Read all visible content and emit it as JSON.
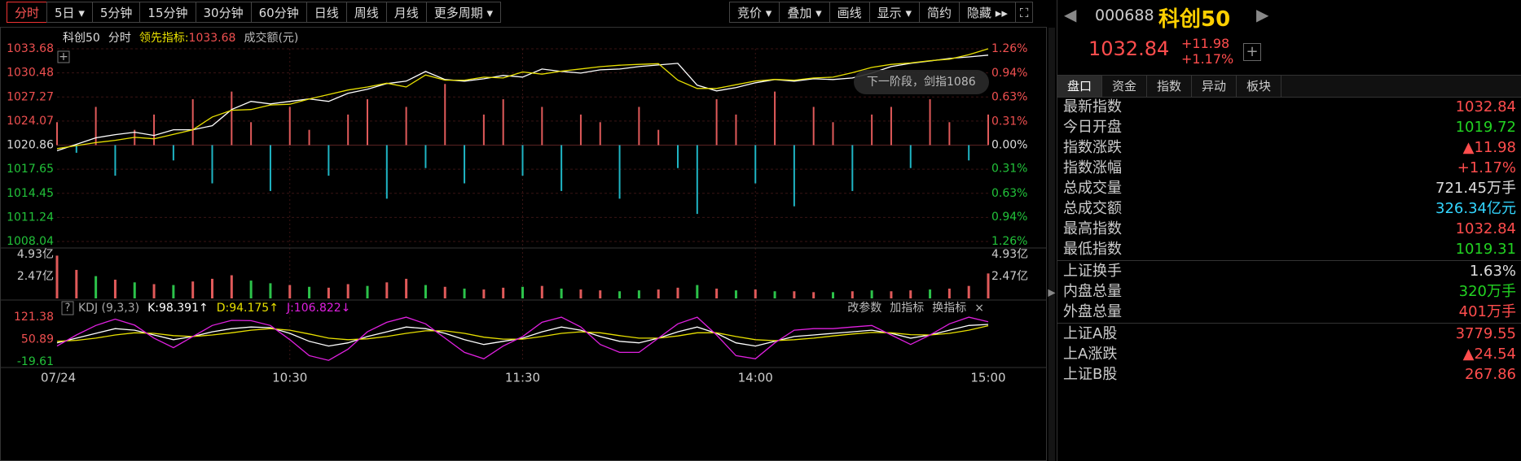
{
  "toolbar": {
    "periods": [
      "分时",
      "5日",
      "5分钟",
      "15分钟",
      "30分钟",
      "60分钟",
      "日线",
      "周线",
      "月线",
      "更多周期"
    ],
    "tools": [
      "竞价",
      "叠加",
      "画线",
      "显示",
      "简约",
      "隐藏"
    ]
  },
  "chart_data": {
    "type": "line",
    "legend": [
      "科创50",
      "分时",
      "领先指标:",
      "1033.68",
      "成交额(元)"
    ],
    "bubble": "下一阶段，剑指1086",
    "ylim": [
      1008.04,
      1033.68
    ],
    "yticks": [
      1033.68,
      1030.48,
      1027.27,
      1024.07,
      1020.86,
      1017.65,
      1014.45,
      1011.24,
      1008.04
    ],
    "y2lim": [
      -1.26,
      1.26
    ],
    "y2ticks": [
      {
        "value": 1.26,
        "label": "1.26%"
      },
      {
        "value": 0.94,
        "label": "0.94%"
      },
      {
        "value": 0.63,
        "label": "0.63%"
      },
      {
        "value": 0.31,
        "label": "0.31%"
      },
      {
        "value": 0,
        "label": "0.00%"
      },
      {
        "value": -0.31,
        "label": "0.31%"
      },
      {
        "value": -0.63,
        "label": "0.63%"
      },
      {
        "value": -0.94,
        "label": "0.94%"
      },
      {
        "value": -1.26,
        "label": "1.26%"
      }
    ],
    "xticks": [
      "07/24",
      "10:30",
      "11:30",
      "14:00",
      "15:00"
    ],
    "series": [
      {
        "color": "#ffffff",
        "values": [
          1020.11,
          1020.97,
          1021.83,
          1022.26,
          1022.58,
          1022.15,
          1022.9,
          1022.9,
          1023.45,
          1025.6,
          1026.68,
          1026.35,
          1026.68,
          1027.0,
          1026.68,
          1027.75,
          1028.29,
          1029.05,
          1029.37,
          1030.66,
          1029.59,
          1029.37,
          1029.69,
          1030.13,
          1029.91,
          1030.99,
          1030.66,
          1030.45,
          1030.88,
          1030.99,
          1031.31,
          1031.53,
          1031.74,
          1028.83,
          1028.08,
          1028.51,
          1029.16,
          1029.59,
          1029.37,
          1029.69,
          1029.59,
          1029.8,
          1030.45,
          1031.31,
          1031.74,
          1032.06,
          1032.39,
          1032.6,
          1032.84
        ]
      },
      {
        "color": "#e8e000",
        "values": [
          1020.4,
          1020.8,
          1021.2,
          1021.5,
          1021.9,
          1021.7,
          1022.3,
          1022.9,
          1024.6,
          1025.5,
          1025.6,
          1026.2,
          1026.3,
          1027.0,
          1027.6,
          1028.2,
          1028.6,
          1029.1,
          1028.6,
          1030.2,
          1029.5,
          1029.5,
          1029.9,
          1029.8,
          1030.6,
          1030.3,
          1030.7,
          1031.0,
          1031.3,
          1031.5,
          1031.6,
          1031.7,
          1029.5,
          1028.4,
          1028.4,
          1028.9,
          1029.4,
          1029.6,
          1029.5,
          1029.8,
          1029.9,
          1030.5,
          1031.2,
          1031.6,
          1031.8,
          1032.1,
          1032.3,
          1032.9,
          1033.68
        ]
      }
    ],
    "strength": {
      "up_color": "#e05a5a",
      "down_color": "#1fb5c4",
      "values": [
        0.3,
        -0.1,
        0.5,
        -0.4,
        0.2,
        0.4,
        -0.2,
        0.6,
        -0.5,
        0.7,
        0.3,
        -0.6,
        0.5,
        0.2,
        -0.4,
        0.4,
        0.6,
        -0.7,
        0.5,
        -0.3,
        0.8,
        -0.5,
        0.4,
        0.6,
        -0.4,
        0.5,
        -0.6,
        0.4,
        0.3,
        -0.7,
        0.5,
        0.2,
        -0.3,
        -0.9,
        0.6,
        0.4,
        -0.5,
        0.7,
        -0.8,
        0.5,
        0.3,
        -0.6,
        0.4,
        0.5,
        -0.3,
        0.6,
        0.3,
        -0.2,
        0.4
      ]
    }
  },
  "volume": {
    "ylim": [
      0,
      4.93
    ],
    "yticks": [
      {
        "value": 4.93,
        "label": "4.93亿"
      },
      {
        "value": 2.47,
        "label": "2.47亿"
      }
    ],
    "up_color": "#e05a5a",
    "down_color": "#2cc24a",
    "values": [
      4.8,
      3.2,
      2.5,
      2.1,
      1.8,
      1.6,
      1.5,
      1.9,
      2.2,
      2.6,
      2.0,
      1.7,
      1.5,
      1.3,
      1.2,
      1.6,
      1.4,
      1.8,
      2.2,
      1.5,
      1.3,
      1.1,
      1.0,
      1.2,
      1.3,
      1.4,
      1.1,
      1.0,
      0.9,
      0.8,
      0.9,
      1.0,
      1.2,
      1.5,
      1.1,
      0.9,
      1.0,
      0.8,
      0.8,
      0.7,
      0.7,
      0.8,
      0.9,
      0.8,
      0.9,
      1.0,
      1.1,
      1.4,
      2.8
    ],
    "up": [
      true,
      true,
      false,
      true,
      false,
      true,
      false,
      true,
      true,
      true,
      false,
      false,
      true,
      false,
      true,
      true,
      false,
      true,
      true,
      false,
      true,
      false,
      true,
      true,
      false,
      true,
      false,
      true,
      true,
      false,
      false,
      true,
      true,
      false,
      true,
      false,
      true,
      false,
      true,
      true,
      false,
      true,
      false,
      true,
      true,
      false,
      true,
      true,
      true
    ]
  },
  "kdj": {
    "help": "?",
    "title": "KDJ (9,3,3)",
    "ylim": [
      -19.61,
      121.38
    ],
    "yticks": [
      121.38,
      50.89,
      -19.61
    ],
    "actions": [
      "改参数",
      "加指标",
      "换指标",
      "×"
    ],
    "series": [
      {
        "label": "K:98.391↑",
        "color": "#ffffff",
        "values": [
          40,
          55,
          70,
          85,
          80,
          65,
          50,
          60,
          75,
          85,
          90,
          88,
          70,
          45,
          30,
          40,
          60,
          75,
          90,
          85,
          70,
          50,
          35,
          45,
          55,
          75,
          90,
          80,
          60,
          45,
          40,
          55,
          75,
          90,
          70,
          40,
          30,
          45,
          60,
          65,
          70,
          75,
          80,
          70,
          55,
          65,
          80,
          95,
          98.391
        ]
      },
      {
        "label": "D:94.175↑",
        "color": "#e8e000",
        "values": [
          45,
          48,
          55,
          65,
          72,
          70,
          63,
          60,
          65,
          72,
          80,
          85,
          80,
          68,
          55,
          50,
          53,
          60,
          70,
          78,
          78,
          70,
          58,
          52,
          52,
          60,
          70,
          75,
          72,
          63,
          55,
          55,
          62,
          72,
          72,
          60,
          50,
          47,
          50,
          55,
          62,
          68,
          73,
          72,
          66,
          65,
          70,
          80,
          94.175
        ]
      },
      {
        "label": "J:106.822↓",
        "color": "#e020e0",
        "values": [
          30,
          65,
          95,
          115,
          96,
          55,
          25,
          60,
          95,
          111,
          110,
          95,
          50,
          0,
          -15,
          20,
          75,
          105,
          121,
          100,
          55,
          10,
          -10,
          30,
          60,
          105,
          121,
          90,
          35,
          10,
          10,
          55,
          100,
          121,
          65,
          0,
          -10,
          40,
          80,
          85,
          85,
          90,
          95,
          65,
          35,
          65,
          100,
          121,
          106.822
        ]
      }
    ]
  },
  "quote": {
    "code": "000688",
    "name": "科创50",
    "price": "1032.84",
    "change": "+11.98",
    "pct": "+1.17%",
    "tabs": [
      "盘口",
      "资金",
      "指数",
      "异动",
      "板块"
    ],
    "rows": [
      {
        "label": "最新指数",
        "value": "1032.84",
        "color": "#ff4d4d"
      },
      {
        "label": "今日开盘",
        "value": "1019.72",
        "color": "#22d322"
      },
      {
        "label": "指数涨跌",
        "value": "▲11.98",
        "color": "#ff4d4d"
      },
      {
        "label": "指数涨幅",
        "value": "+1.17%",
        "color": "#ff4d4d"
      },
      {
        "label": "总成交量",
        "value": "721.45",
        "unit": "万手",
        "color": "#dddddd"
      },
      {
        "label": "总成交额",
        "value": "326.34",
        "unit": "亿元",
        "color": "#33d6ff"
      },
      {
        "label": "最高指数",
        "value": "1032.84",
        "color": "#ff4d4d"
      },
      {
        "label": "最低指数",
        "value": "1019.31",
        "color": "#22d322"
      },
      {
        "label": "上证换手",
        "value": "1.63%",
        "color": "#dddddd"
      },
      {
        "label": "内盘总量",
        "value": "320",
        "unit": "万手",
        "color": "#22d322"
      },
      {
        "label": "外盘总量",
        "value": "401",
        "unit": "万手",
        "color": "#ff4d4d"
      },
      {
        "label": "上证A股",
        "value": "3779.55",
        "color": "#ff4d4d"
      },
      {
        "label": "上A涨跌",
        "value": "▲24.54",
        "color": "#ff4d4d"
      },
      {
        "label": "上证B股",
        "value": "267.86",
        "color": "#ff4d4d"
      }
    ]
  }
}
